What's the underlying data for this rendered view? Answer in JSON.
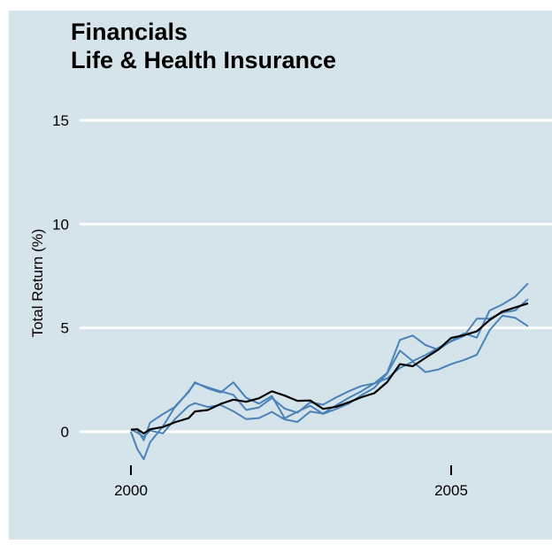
{
  "chart_data": {
    "type": "line",
    "title": "Financials",
    "subtitle": "Life & Health Insurance",
    "xlabel": "",
    "ylabel": "Total Return (%)",
    "xlim": [
      1999.0,
      2006.2
    ],
    "ylim": [
      -2.0,
      17.0
    ],
    "x_ticks": [
      2000,
      2005
    ],
    "y_ticks": [
      0,
      5,
      10,
      15
    ],
    "grid": "horizontal",
    "colors": {
      "background": "#d5e4eb",
      "grid": "#ffffff",
      "series_lines": "#4a82b8",
      "median_line": "#000000"
    },
    "series": [
      {
        "x": [
          2000.0,
          2000.1,
          2000.2,
          2000.3,
          2000.5,
          2000.7,
          2000.9,
          2001.0,
          2001.2,
          2001.4,
          2001.6,
          2001.8,
          2002.0,
          2002.2,
          2002.4,
          2002.6,
          2002.8,
          2003.0,
          2003.2,
          2003.4,
          2003.6,
          2003.8,
          2004.0,
          2004.2,
          2004.4,
          2004.6,
          2004.8,
          2005.0,
          2005.2,
          2005.4,
          2005.6,
          2005.8,
          2006.0,
          2006.2
        ],
        "y": [
          0.1,
          0.0,
          -0.6,
          0.2,
          0.6,
          1.0,
          1.8,
          2.3,
          2.2,
          2.1,
          2.0,
          1.3,
          1.4,
          1.8,
          1.2,
          0.9,
          1.3,
          1.1,
          1.4,
          1.7,
          2.0,
          2.2,
          2.8,
          4.5,
          4.8,
          4.4,
          4.2,
          4.6,
          4.9,
          4.6,
          5.8,
          6.0,
          6.3,
          6.9
        ]
      },
      {
        "x": [
          2000.0,
          2000.1,
          2000.2,
          2000.3,
          2000.5,
          2000.7,
          2000.9,
          2001.0,
          2001.2,
          2001.4,
          2001.6,
          2001.8,
          2002.0,
          2002.2,
          2002.4,
          2002.6,
          2002.8,
          2003.0,
          2003.2,
          2003.4,
          2003.6,
          2003.8,
          2004.0,
          2004.2,
          2004.4,
          2004.6,
          2004.8,
          2005.0,
          2005.2,
          2005.4,
          2005.6,
          2005.8,
          2006.0,
          2006.2
        ],
        "y": [
          0.0,
          -0.8,
          -1.2,
          -0.3,
          0.5,
          1.5,
          2.1,
          2.5,
          2.1,
          1.8,
          2.2,
          1.4,
          1.1,
          1.5,
          0.5,
          0.9,
          1.3,
          1.0,
          1.3,
          1.6,
          2.0,
          2.3,
          2.9,
          3.9,
          3.3,
          3.5,
          3.8,
          4.1,
          4.4,
          5.3,
          5.4,
          5.8,
          6.0,
          6.6
        ]
      },
      {
        "x": [
          2000.0,
          2000.1,
          2000.2,
          2000.3,
          2000.5,
          2000.7,
          2000.9,
          2001.0,
          2001.2,
          2001.4,
          2001.6,
          2001.8,
          2002.0,
          2002.2,
          2002.4,
          2002.6,
          2002.8,
          2003.0,
          2003.2,
          2003.4,
          2003.6,
          2003.8,
          2004.0,
          2004.2,
          2004.4,
          2004.6,
          2004.8,
          2005.0,
          2005.2,
          2005.4,
          2005.6,
          2005.8,
          2006.0,
          2006.2
        ],
        "y": [
          0.1,
          0.0,
          -0.3,
          -0.1,
          -0.3,
          0.4,
          1.0,
          1.2,
          1.1,
          1.3,
          1.1,
          0.8,
          0.9,
          1.2,
          0.8,
          0.6,
          1.0,
          0.8,
          1.1,
          1.4,
          1.7,
          2.1,
          2.4,
          3.0,
          3.4,
          3.0,
          3.2,
          3.5,
          3.7,
          3.9,
          5.0,
          5.6,
          5.4,
          4.9
        ]
      },
      {
        "x": [
          2000.0,
          2000.1,
          2000.2,
          2000.3,
          2000.5,
          2000.7,
          2000.9,
          2001.0,
          2001.2,
          2001.4,
          2001.6,
          2001.8,
          2002.0,
          2002.2,
          2002.4,
          2002.6,
          2002.8,
          2003.0,
          2003.2,
          2003.4,
          2003.6,
          2003.8,
          2004.0,
          2004.2,
          2004.4,
          2004.6,
          2004.8,
          2005.0,
          2005.2,
          2005.4,
          2005.6,
          2005.8,
          2006.0,
          2006.2
        ],
        "y": [
          0.1,
          0.0,
          -0.1,
          0.2,
          0.4,
          0.7,
          0.9,
          1.2,
          1.2,
          1.4,
          1.5,
          1.3,
          1.4,
          1.7,
          1.5,
          1.3,
          1.4,
          1.1,
          1.3,
          1.6,
          1.9,
          2.1,
          2.6,
          3.4,
          3.2,
          3.5,
          3.8,
          4.3,
          4.4,
          4.6,
          5.2,
          5.7,
          6.0,
          6.3
        ]
      }
    ]
  }
}
